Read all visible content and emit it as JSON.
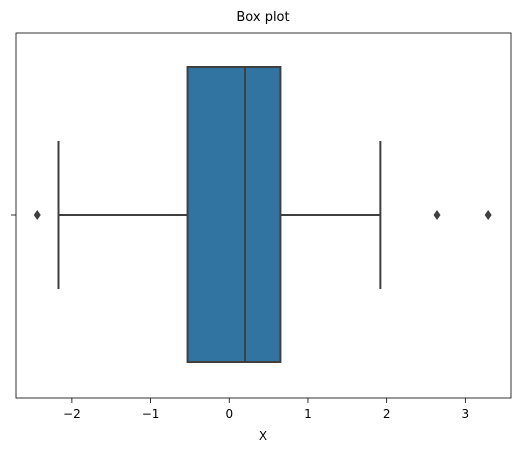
{
  "chart_data": {
    "type": "box",
    "title": "Box plot",
    "xlabel": "X",
    "box": {
      "whislo": -2.17,
      "q1": -0.53,
      "med": 0.2,
      "q3": 0.65,
      "whishi": 1.92,
      "fliers": [
        -2.44,
        2.64,
        3.29
      ]
    },
    "color": "#3274a1",
    "edgecolor": "#3f3f3f",
    "xlim": [
      -2.71,
      3.58
    ],
    "xticks": [
      {
        "value": -2,
        "label": "−2"
      },
      {
        "value": -1,
        "label": "−1"
      },
      0,
      1,
      2,
      3
    ]
  }
}
